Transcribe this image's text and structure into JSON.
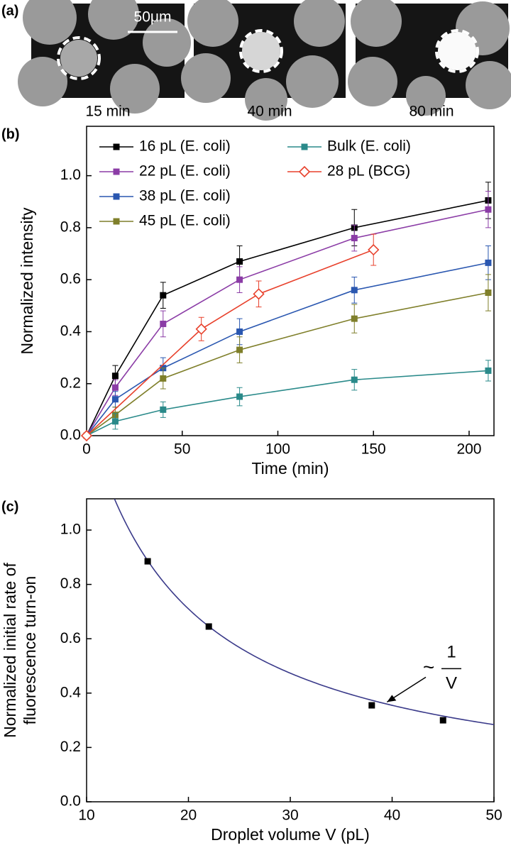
{
  "images": {
    "label": "(a)",
    "scale_bar": "50μm",
    "captions": [
      "15 min",
      "40 min",
      "80 min"
    ]
  },
  "chart_data": [
    {
      "type": "line",
      "label": "(b)",
      "xlabel": "Time (min)",
      "ylabel": "Normalized intensity",
      "xlim": [
        0,
        213
      ],
      "xticks": [
        0,
        50,
        100,
        150,
        200
      ],
      "ylim": [
        0,
        1.19
      ],
      "yticks": [
        {
          "value": 0,
          "label": "0.0"
        },
        {
          "value": 0.2,
          "label": "0.2"
        },
        {
          "value": 0.4,
          "label": "0.4"
        },
        {
          "value": 0.6,
          "label": "0.6"
        },
        {
          "value": 0.8,
          "label": "0.8"
        },
        {
          "value": 1,
          "label": "1.0"
        }
      ],
      "legend": "top-left",
      "series": [
        {
          "name": "16 pL (E. coli)",
          "color": "#000000",
          "marker": "square",
          "x": [
            0,
            15,
            40,
            80,
            140,
            210
          ],
          "values": [
            0,
            0.23,
            0.54,
            0.67,
            0.8,
            0.905
          ],
          "errors": [
            0,
            0.04,
            0.05,
            0.06,
            0.07,
            0.07
          ]
        },
        {
          "name": "22 pL (E. coli)",
          "color": "#8b3ca6",
          "marker": "square",
          "x": [
            0,
            15,
            40,
            80,
            140,
            210
          ],
          "values": [
            0,
            0.185,
            0.43,
            0.6,
            0.76,
            0.87
          ],
          "errors": [
            0,
            0.03,
            0.05,
            0.05,
            0.05,
            0.07
          ]
        },
        {
          "name": "38 pL (E. coli)",
          "color": "#2a57b0",
          "marker": "square",
          "x": [
            0,
            15,
            40,
            80,
            140,
            210
          ],
          "values": [
            0,
            0.14,
            0.26,
            0.4,
            0.56,
            0.665
          ],
          "errors": [
            0,
            0.03,
            0.04,
            0.05,
            0.05,
            0.065
          ]
        },
        {
          "name": "45 pL (E. coli)",
          "color": "#7f7f2a",
          "marker": "square",
          "x": [
            0,
            15,
            40,
            80,
            140,
            210
          ],
          "values": [
            0,
            0.08,
            0.22,
            0.33,
            0.45,
            0.55
          ],
          "errors": [
            0,
            0.03,
            0.04,
            0.05,
            0.055,
            0.07
          ]
        },
        {
          "name": "Bulk (E. coli)",
          "color": "#2a8a8a",
          "marker": "square",
          "x": [
            0,
            15,
            40,
            80,
            140,
            210
          ],
          "values": [
            0,
            0.055,
            0.1,
            0.15,
            0.215,
            0.25
          ],
          "errors": [
            0,
            0.03,
            0.03,
            0.035,
            0.04,
            0.04
          ]
        },
        {
          "name": "28 pL (BCG)",
          "color": "#e8412c",
          "marker": "diamond-open",
          "x": [
            0,
            60,
            90,
            150
          ],
          "values": [
            0,
            0.41,
            0.545,
            0.715
          ],
          "errors": [
            0,
            0.045,
            0.05,
            0.06
          ]
        }
      ]
    },
    {
      "type": "scatter",
      "label": "(c)",
      "xlabel": "Droplet volume V (pL)",
      "ylabel": [
        "Normalized initial rate of",
        "fluorescence turn-on"
      ],
      "xlim": [
        10,
        50
      ],
      "xticks": [
        10,
        20,
        30,
        40,
        50
      ],
      "ylim": [
        0,
        1.115
      ],
      "yticks": [
        {
          "value": 0,
          "label": "0.0"
        },
        {
          "value": 0.2,
          "label": "0.2"
        },
        {
          "value": 0.4,
          "label": "0.4"
        },
        {
          "value": 0.6,
          "label": "0.6"
        },
        {
          "value": 0.8,
          "label": "0.8"
        },
        {
          "value": 1,
          "label": "1.0"
        }
      ],
      "color": "#000000",
      "fit_color": "#3a3a8a",
      "fit_coefficient": 14.2,
      "x": [
        16,
        22,
        38,
        45
      ],
      "values": [
        0.885,
        0.645,
        0.355,
        0.3
      ],
      "annotation": {
        "prefix": "~",
        "numerator": "1",
        "denominator": "V"
      }
    }
  ]
}
